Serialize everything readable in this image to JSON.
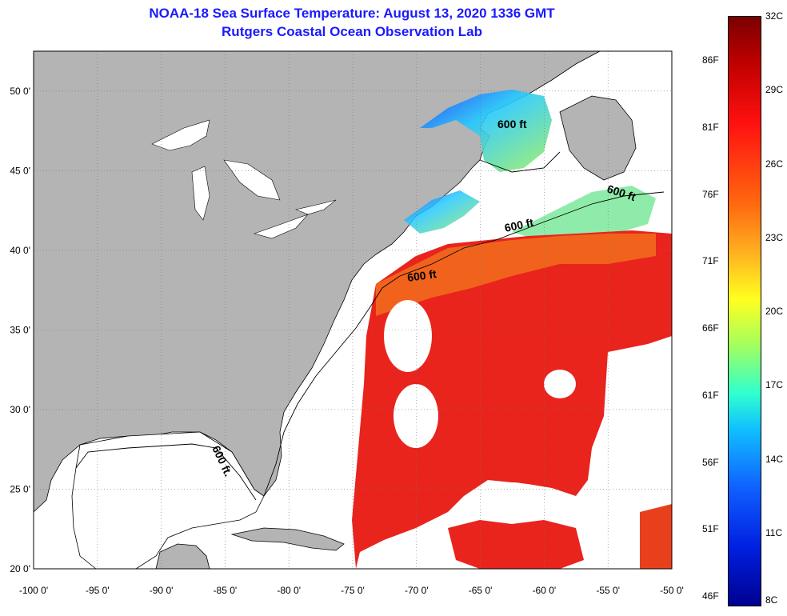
{
  "header": {
    "title_line1": "NOAA-18 Sea Surface Temperature:  August 13, 2020 1336 GMT",
    "title_line2": "Rutgers Coastal Ocean Observation Lab"
  },
  "map": {
    "lat_labels": [
      "50 0'",
      "45 0'",
      "40 0'",
      "35 0'",
      "30 0'",
      "25 0'",
      "20 0'"
    ],
    "lon_labels": [
      "-100 0'",
      "-95 0'",
      "-90 0'",
      "-85 0'",
      "-80 0'",
      "-75 0'",
      "-70 0'",
      "-65 0'",
      "-60 0'",
      "-55 0'",
      "-50 0'"
    ],
    "contour_labels": [
      "600 ft",
      "600 ft",
      "600 ft",
      "600 ft",
      "600 ft."
    ],
    "colors": {
      "land": "#b4b4b4",
      "ocean": "#ffffff",
      "warm": "#e8241c",
      "orange": "#f26a1e"
    }
  },
  "colorbar": {
    "fahrenheit_labels": [
      "86F",
      "81F",
      "76F",
      "71F",
      "66F",
      "61F",
      "56F",
      "51F",
      "46F"
    ],
    "celsius_labels": [
      "32C",
      "29C",
      "26C",
      "23C",
      "20C",
      "17C",
      "14C",
      "11C",
      "8C"
    ]
  }
}
